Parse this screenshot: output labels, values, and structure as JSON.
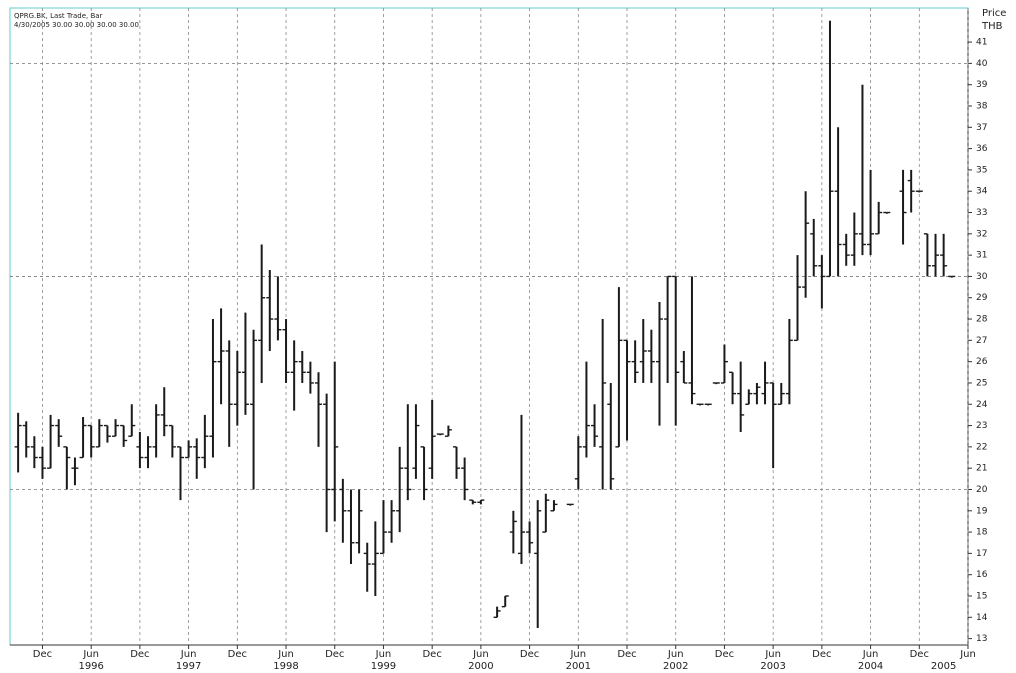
{
  "chart_data": {
    "type": "ohlc",
    "title": "QPRG.BK, Last Trade, Bar",
    "subtitle": "4/30/2005 30.00 30.00 30.00 30.00",
    "y_label": "Price",
    "y_unit": "THB",
    "color": "#1a1a1a",
    "grid": true,
    "xlim": [
      "1995-08",
      "2005-06"
    ],
    "ylim": [
      12.7,
      42.6
    ],
    "yticks": [
      13,
      14,
      15,
      16,
      17,
      18,
      19,
      20,
      21,
      22,
      23,
      24,
      25,
      26,
      27,
      28,
      29,
      30,
      31,
      32,
      33,
      34,
      35,
      36,
      37,
      38,
      39,
      40,
      41
    ],
    "ygrid": [
      20,
      30,
      40
    ],
    "xticks": [
      {
        "value": "1995-12",
        "label": "Dec"
      },
      {
        "value": "1996-06",
        "label": "Jun"
      },
      {
        "value": "1996-12",
        "label": "Dec"
      },
      {
        "value": "1997-06",
        "label": "Jun"
      },
      {
        "value": "1997-12",
        "label": "Dec"
      },
      {
        "value": "1998-06",
        "label": "Jun"
      },
      {
        "value": "1998-12",
        "label": "Dec"
      },
      {
        "value": "1999-06",
        "label": "Jun"
      },
      {
        "value": "1999-12",
        "label": "Dec"
      },
      {
        "value": "2000-06",
        "label": "Jun"
      },
      {
        "value": "2000-12",
        "label": "Dec"
      },
      {
        "value": "2001-06",
        "label": "Jun"
      },
      {
        "value": "2001-12",
        "label": "Dec"
      },
      {
        "value": "2002-06",
        "label": "Jun"
      },
      {
        "value": "2002-12",
        "label": "Dec"
      },
      {
        "value": "2003-06",
        "label": "Jun"
      },
      {
        "value": "2003-12",
        "label": "Dec"
      },
      {
        "value": "2004-06",
        "label": "Jun"
      },
      {
        "value": "2004-12",
        "label": "Dec"
      },
      {
        "value": "2005-06",
        "label": "Jun"
      }
    ],
    "xyears": [
      {
        "value": "1996-06",
        "label": "1996"
      },
      {
        "value": "1997-06",
        "label": "1997"
      },
      {
        "value": "1998-06",
        "label": "1998"
      },
      {
        "value": "1999-06",
        "label": "1999"
      },
      {
        "value": "2000-06",
        "label": "2000"
      },
      {
        "value": "2001-06",
        "label": "2001"
      },
      {
        "value": "2002-06",
        "label": "2002"
      },
      {
        "value": "2003-06",
        "label": "2003"
      },
      {
        "value": "2004-06",
        "label": "2004"
      },
      {
        "value": "2005-03",
        "label": "2005"
      }
    ],
    "x": [
      "1995-09",
      "1995-10",
      "1995-11",
      "1995-12",
      "1996-01",
      "1996-02",
      "1996-03",
      "1996-04",
      "1996-05",
      "1996-06",
      "1996-07",
      "1996-08",
      "1996-09",
      "1996-10",
      "1996-11",
      "1996-12",
      "1997-01",
      "1997-02",
      "1997-03",
      "1997-04",
      "1997-05",
      "1997-06",
      "1997-07",
      "1997-08",
      "1997-09",
      "1997-10",
      "1997-11",
      "1997-12",
      "1998-01",
      "1998-02",
      "1998-03",
      "1998-04",
      "1998-05",
      "1998-06",
      "1998-07",
      "1998-08",
      "1998-09",
      "1998-10",
      "1998-11",
      "1998-12",
      "1999-01",
      "1999-02",
      "1999-03",
      "1999-04",
      "1999-05",
      "1999-06",
      "1999-07",
      "1999-08",
      "1999-09",
      "1999-10",
      "1999-11",
      "1999-12",
      "2000-01",
      "2000-02",
      "2000-03",
      "2000-04",
      "2000-05",
      "2000-06",
      "2000-07",
      "2000-08",
      "2000-09",
      "2000-10",
      "2000-11",
      "2000-12",
      "2001-01",
      "2001-02",
      "2001-03",
      "2001-04",
      "2001-05",
      "2001-06",
      "2001-07",
      "2001-08",
      "2001-09",
      "2001-10",
      "2001-11",
      "2001-12",
      "2002-01",
      "2002-02",
      "2002-03",
      "2002-04",
      "2002-05",
      "2002-06",
      "2002-07",
      "2002-08",
      "2002-09",
      "2002-10",
      "2002-11",
      "2002-12",
      "2003-01",
      "2003-02",
      "2003-03",
      "2003-04",
      "2003-05",
      "2003-06",
      "2003-07",
      "2003-08",
      "2003-09",
      "2003-10",
      "2003-11",
      "2003-12",
      "2004-01",
      "2004-02",
      "2004-03",
      "2004-04",
      "2004-05",
      "2004-06",
      "2004-07",
      "2004-08",
      "2004-09",
      "2004-10",
      "2004-11",
      "2004-12",
      "2005-01",
      "2005-02",
      "2005-03",
      "2005-04"
    ],
    "open": [
      22,
      23,
      22,
      21.5,
      21,
      23,
      22,
      21,
      21.5,
      23,
      22,
      23,
      22.5,
      23,
      22.5,
      22,
      21.5,
      22,
      23.5,
      23,
      22,
      21.5,
      22,
      21.5,
      22.5,
      26,
      26.5,
      24,
      25.5,
      24,
      27,
      29,
      28,
      27.5,
      25.5,
      26,
      25.5,
      25,
      24,
      20,
      20,
      19,
      17.5,
      17,
      16.5,
      17,
      18,
      19,
      21,
      21,
      22,
      21,
      22.6,
      22.5,
      22,
      21,
      19.5,
      19.4,
      null,
      14,
      14.5,
      18,
      17,
      18,
      17,
      18,
      19,
      null,
      19.3,
      20.5,
      22,
      23,
      22,
      24,
      22,
      27,
      26,
      26,
      26.5,
      26,
      28,
      30,
      26,
      25,
      24,
      24,
      25,
      25,
      25.5,
      24.5,
      24,
      24.5,
      24.5,
      25,
      24,
      24.5,
      27,
      29.5,
      32,
      30.5,
      30,
      34,
      31.5,
      31,
      32,
      31.5,
      32,
      33,
      null,
      34,
      34.5,
      34,
      32,
      30.5,
      31,
      30
    ],
    "high": [
      23.6,
      23.2,
      22.5,
      22,
      23.5,
      23.3,
      22,
      21.5,
      23.4,
      23,
      23.3,
      23,
      23.3,
      23,
      24,
      22.7,
      22.5,
      24,
      24.8,
      23,
      22,
      22.3,
      22.4,
      23.5,
      28,
      28.5,
      27,
      26.5,
      28.3,
      27.5,
      31.5,
      30.3,
      30,
      28,
      27,
      26.5,
      26,
      25.5,
      24.5,
      26,
      20.5,
      20,
      20,
      17.5,
      18.5,
      19.5,
      19.5,
      22,
      24,
      24,
      22,
      24.2,
      22.6,
      23,
      22,
      21.5,
      19.5,
      19.5,
      null,
      14.5,
      15,
      19,
      23.5,
      18.5,
      19.5,
      19.8,
      19.5,
      null,
      19.3,
      22.5,
      26,
      24,
      28,
      25,
      29.5,
      27,
      27,
      28,
      27.5,
      28.8,
      30,
      30,
      26.5,
      30,
      24,
      24,
      25,
      26.8,
      25.5,
      26,
      24.7,
      25,
      26,
      25,
      25,
      28,
      31,
      34,
      32.7,
      31,
      42,
      37,
      32,
      33,
      39,
      35,
      33.5,
      33,
      null,
      35,
      35,
      34,
      32,
      32,
      32,
      30
    ],
    "low": [
      20.8,
      21.5,
      21,
      20.5,
      21,
      22,
      20,
      20.2,
      21.5,
      21.5,
      22,
      22.2,
      22.5,
      22,
      22.5,
      21,
      21,
      21.5,
      22.5,
      21.5,
      19.5,
      21.5,
      20.5,
      21,
      21.5,
      24,
      22,
      23,
      23.5,
      20,
      25,
      26.5,
      27,
      25,
      23.7,
      25,
      24.5,
      22,
      18,
      18.5,
      17.5,
      16.5,
      17,
      15.2,
      15,
      17,
      17.5,
      18,
      19.5,
      20.5,
      19.5,
      20.5,
      22.6,
      22.5,
      20.5,
      19.5,
      19.3,
      19.3,
      null,
      14,
      14.5,
      17,
      16.5,
      17,
      13.5,
      18,
      19,
      null,
      19.3,
      20,
      21.5,
      22,
      20,
      20,
      22,
      22.3,
      25,
      25,
      25,
      23,
      25,
      23,
      25,
      24,
      24,
      24,
      25,
      25,
      24,
      22.7,
      24,
      24,
      24,
      21,
      24,
      24,
      27,
      29,
      30,
      28.5,
      30,
      30,
      30.5,
      30.5,
      31,
      31,
      32,
      33,
      null,
      31.5,
      33,
      34,
      30,
      30,
      30,
      30
    ],
    "close": [
      23,
      22,
      21.5,
      21,
      23,
      22.5,
      21.5,
      21,
      23,
      22,
      23,
      22.5,
      23,
      22.3,
      23,
      21.5,
      22,
      23.5,
      23,
      22,
      21.5,
      22,
      21.5,
      22.5,
      26,
      26.5,
      24,
      25.5,
      24,
      27,
      29,
      28,
      27.5,
      25.5,
      26,
      25.5,
      25,
      24,
      20,
      22,
      19,
      17.5,
      19,
      16.5,
      17,
      18,
      19,
      21,
      20,
      23,
      20,
      22.5,
      22.6,
      22.8,
      21,
      20,
      19.4,
      19.5,
      null,
      14.3,
      15,
      18.5,
      18,
      17.5,
      19,
      19.5,
      19.3,
      null,
      19.3,
      22,
      23,
      22.5,
      25,
      20.5,
      27,
      26,
      25.5,
      26.5,
      26,
      28,
      30,
      25.5,
      25,
      24.5,
      24,
      24,
      25,
      26,
      24.5,
      23.5,
      24.5,
      24.8,
      25,
      24,
      24.5,
      27,
      29.5,
      32.5,
      30.5,
      30,
      34,
      31.5,
      31,
      32,
      31.5,
      32,
      33,
      33,
      null,
      33,
      34,
      34,
      30.5,
      31,
      30.5,
      30
    ]
  }
}
